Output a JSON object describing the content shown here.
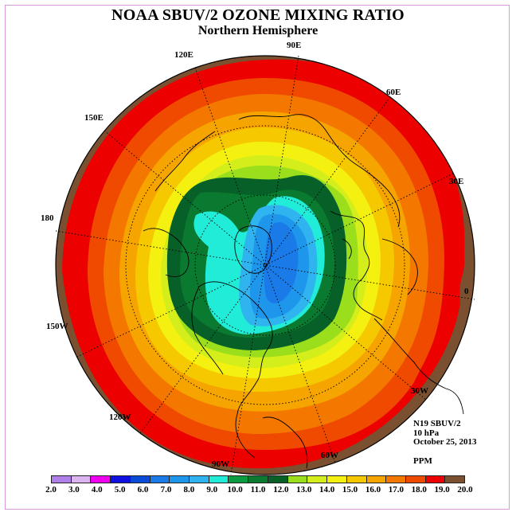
{
  "title": "NOAA SBUV/2 OZONE MIXING RATIO",
  "subtitle": "Northern Hemisphere",
  "longitude_labels": {
    "lon_90e": "90E",
    "lon_120e": "120E",
    "lon_60e": "60E",
    "lon_150e": "150E",
    "lon_30e": "30E",
    "lon_180": "180",
    "lon_0": "0",
    "lon_150w": "150W",
    "lon_30w": "30W",
    "lon_120w": "120W",
    "lon_60w": "60W",
    "lon_90w": "90W"
  },
  "info": {
    "instrument": "N19 SBUV/2",
    "level": "10 hPa",
    "date": "October 25, 2013",
    "units": "PPM"
  },
  "colorbar": {
    "labels": [
      "2.0",
      "3.0",
      "4.0",
      "5.0",
      "6.0",
      "7.0",
      "8.0",
      "9.0",
      "10.0",
      "11.0",
      "12.0",
      "13.0",
      "14.0",
      "15.0",
      "16.0",
      "17.0",
      "18.0",
      "19.0",
      "20.0"
    ],
    "colors": [
      "#b07fe8",
      "#dcb4f0",
      "#ee00ee",
      "#1010e0",
      "#0a4ad8",
      "#1a7ae8",
      "#1e96ec",
      "#30b4f0",
      "#20ecd8",
      "#0a9a40",
      "#0a7a30",
      "#066028",
      "#9ade1c",
      "#d4ee1c",
      "#f4f010",
      "#f6c800",
      "#f6a400",
      "#f47800",
      "#f04a00",
      "#ec0000",
      "#7a5030"
    ]
  },
  "map_colors": {
    "ring_outer": "#7a5030",
    "red": "#ec0000",
    "redorange": "#f04a00",
    "orange": "#f47800",
    "lightorange": "#f6a400",
    "goldorange": "#f6c800",
    "yellow": "#f4f010",
    "lightyellowgreen": "#d4ee1c",
    "yellowgreen": "#9ade1c",
    "green": "#0a7a30",
    "darkgreen": "#066028",
    "cyan": "#20ecd8",
    "lightblue": "#30b4f0",
    "blue": "#1e96ec",
    "deepblue": "#1a7ae8"
  }
}
